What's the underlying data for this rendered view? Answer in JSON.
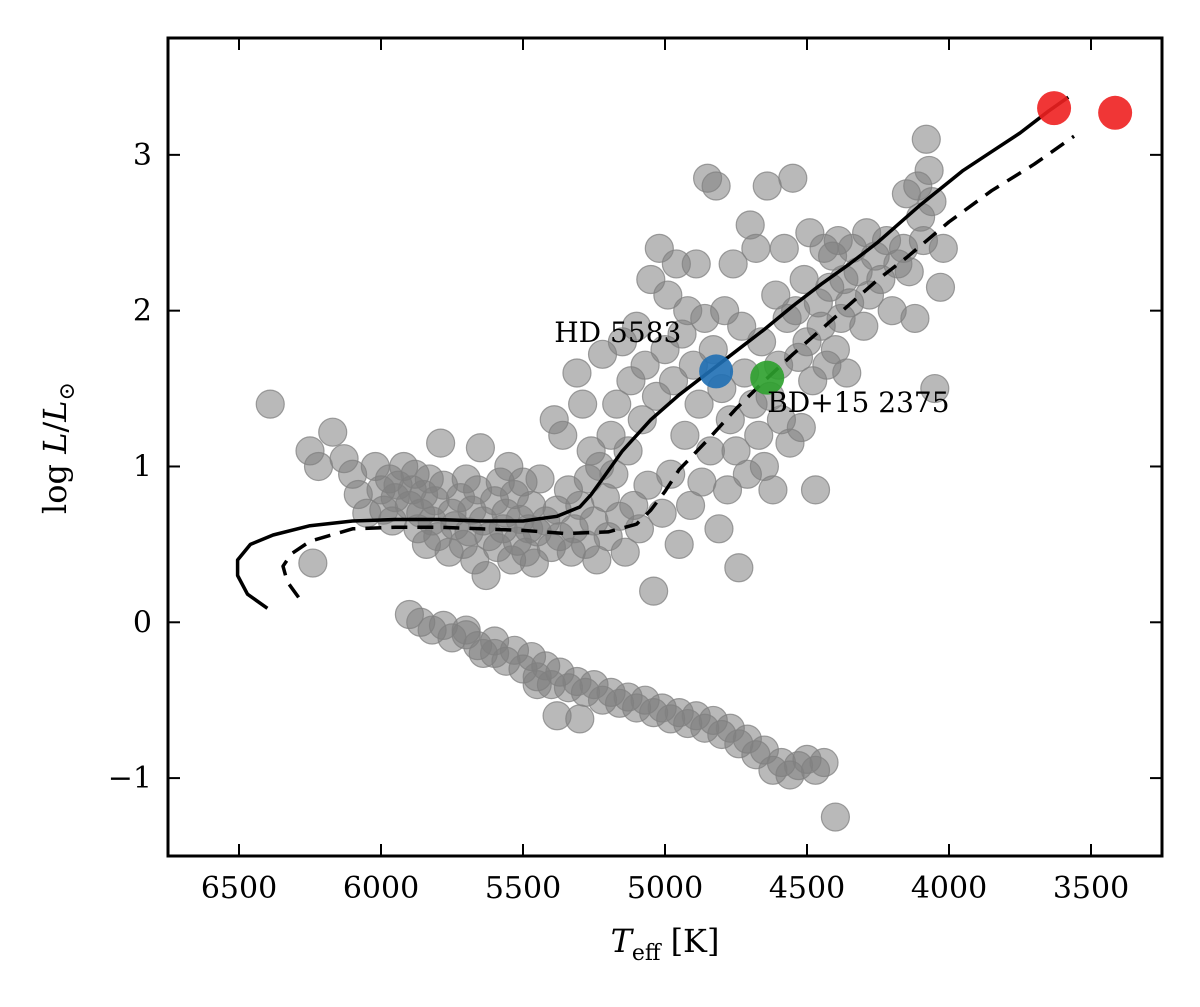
{
  "chart_data": {
    "type": "scatter",
    "xlabel": "T_eff [K]",
    "ylabel": "log L/L_⊙",
    "xlabel_parts": {
      "symbol": "T",
      "sub": "eff",
      "unit": "[K]"
    },
    "ylabel_parts": {
      "log": "log",
      "num": "L",
      "slash": "/",
      "den": "L",
      "sub": "⊙"
    },
    "x_ticks": [
      6500,
      6000,
      5500,
      5000,
      4500,
      4000,
      3500
    ],
    "x_tick_labels": [
      "6500",
      "6000",
      "5500",
      "5000",
      "4500",
      "4000",
      "3500"
    ],
    "y_ticks": [
      -1,
      0,
      1,
      2,
      3
    ],
    "y_tick_labels": [
      "−1",
      "0",
      "1",
      "2",
      "3"
    ],
    "xlim": [
      6750,
      3250
    ],
    "ylim": [
      -1.5,
      3.75
    ],
    "x_inverted": true,
    "grid": false,
    "colors": {
      "background_points": "#808080",
      "HD 5583": "#1f6fb4",
      "BD+15 2375": "#2ca02c",
      "highlight": "#ee2020",
      "track": "#000000"
    },
    "annotations": [
      {
        "text": "HD 5583",
        "x": 5390,
        "y": 1.8
      },
      {
        "text": "BD+15 2375",
        "x": 4640,
        "y": 1.35
      }
    ],
    "highlight_points": [
      {
        "name": "HD 5583",
        "x": 4820,
        "y": 1.61,
        "color": "#1f6fb4"
      },
      {
        "name": "BD+15 2375",
        "x": 4640,
        "y": 1.57,
        "color": "#2ca02c"
      },
      {
        "x": 3630,
        "y": 3.3,
        "color": "#ee2020"
      },
      {
        "x": 3415,
        "y": 3.27,
        "color": "#ee2020"
      }
    ],
    "tracks": [
      {
        "style": "solid",
        "x": [
          6400,
          6470,
          6505,
          6505,
          6460,
          6380,
          6250,
          6100,
          5950,
          5800,
          5650,
          5500,
          5380,
          5300,
          5260,
          5220,
          5150,
          5050,
          4950,
          4850,
          4750,
          4650,
          4550,
          4450,
          4350,
          4250,
          4100,
          3950,
          3850,
          3750,
          3650,
          3580
        ],
        "y": [
          0.09,
          0.18,
          0.3,
          0.4,
          0.5,
          0.56,
          0.62,
          0.65,
          0.66,
          0.66,
          0.65,
          0.65,
          0.68,
          0.74,
          0.82,
          0.92,
          1.1,
          1.3,
          1.46,
          1.6,
          1.74,
          1.88,
          2.03,
          2.17,
          2.3,
          2.44,
          2.68,
          2.9,
          3.02,
          3.14,
          3.28,
          3.37
        ]
      },
      {
        "style": "dashed",
        "x": [
          6290,
          6330,
          6345,
          6315,
          6250,
          6100,
          5950,
          5800,
          5650,
          5500,
          5350,
          5200,
          5100,
          5050,
          5000,
          4950,
          4850,
          4750,
          4650,
          4550,
          4450,
          4350,
          4250,
          4150,
          4000,
          3850,
          3700,
          3560
        ],
        "y": [
          0.16,
          0.26,
          0.36,
          0.44,
          0.52,
          0.6,
          0.61,
          0.61,
          0.6,
          0.59,
          0.57,
          0.58,
          0.63,
          0.72,
          0.84,
          0.98,
          1.17,
          1.37,
          1.55,
          1.72,
          1.88,
          2.04,
          2.2,
          2.34,
          2.57,
          2.77,
          2.94,
          3.12
        ]
      }
    ],
    "background_points": [
      [
        6390,
        1.4
      ],
      [
        6250,
        1.1
      ],
      [
        6240,
        0.38
      ],
      [
        6220,
        1.0
      ],
      [
        6170,
        1.22
      ],
      [
        6130,
        1.05
      ],
      [
        6100,
        0.95
      ],
      [
        6080,
        0.82
      ],
      [
        6050,
        0.7
      ],
      [
        6020,
        1.0
      ],
      [
        6000,
        0.85
      ],
      [
        5990,
        0.72
      ],
      [
        5970,
        0.92
      ],
      [
        5960,
        0.65
      ],
      [
        5950,
        0.8
      ],
      [
        5940,
        0.88
      ],
      [
        5920,
        1.0
      ],
      [
        5900,
        0.75
      ],
      [
        5890,
        0.85
      ],
      [
        5880,
        0.95
      ],
      [
        5870,
        0.6
      ],
      [
        5860,
        0.7
      ],
      [
        5850,
        0.82
      ],
      [
        5840,
        0.5
      ],
      [
        5830,
        0.92
      ],
      [
        5820,
        0.65
      ],
      [
        5810,
        0.78
      ],
      [
        5800,
        0.55
      ],
      [
        5790,
        1.15
      ],
      [
        5780,
        0.88
      ],
      [
        5760,
        0.45
      ],
      [
        5750,
        0.7
      ],
      [
        5740,
        0.62
      ],
      [
        5720,
        0.8
      ],
      [
        5710,
        0.5
      ],
      [
        5700,
        0.92
      ],
      [
        5690,
        0.58
      ],
      [
        5680,
        0.72
      ],
      [
        5670,
        0.4
      ],
      [
        5660,
        0.85
      ],
      [
        5650,
        1.12
      ],
      [
        5640,
        0.65
      ],
      [
        5630,
        0.3
      ],
      [
        5620,
        0.55
      ],
      [
        5600,
        0.78
      ],
      [
        5590,
        0.48
      ],
      [
        5580,
        0.9
      ],
      [
        5570,
        0.6
      ],
      [
        5560,
        0.7
      ],
      [
        5550,
        1.0
      ],
      [
        5540,
        0.4
      ],
      [
        5530,
        0.82
      ],
      [
        5520,
        0.52
      ],
      [
        5510,
        0.66
      ],
      [
        5500,
        0.9
      ],
      [
        5490,
        0.45
      ],
      [
        5480,
        0.6
      ],
      [
        5470,
        0.75
      ],
      [
        5460,
        0.38
      ],
      [
        5450,
        0.58
      ],
      [
        5440,
        0.92
      ],
      [
        5420,
        0.65
      ],
      [
        5400,
        0.48
      ],
      [
        5390,
        1.3
      ],
      [
        5380,
        0.72
      ],
      [
        5370,
        0.55
      ],
      [
        5360,
        1.2
      ],
      [
        5340,
        0.85
      ],
      [
        5330,
        0.45
      ],
      [
        5320,
        0.6
      ],
      [
        5310,
        1.6
      ],
      [
        5300,
        0.75
      ],
      [
        5290,
        1.4
      ],
      [
        5280,
        0.5
      ],
      [
        5270,
        0.92
      ],
      [
        5260,
        1.1
      ],
      [
        5250,
        0.65
      ],
      [
        5240,
        0.4
      ],
      [
        5230,
        1.0
      ],
      [
        5220,
        1.72
      ],
      [
        5210,
        0.8
      ],
      [
        5200,
        0.55
      ],
      [
        5190,
        1.2
      ],
      [
        5180,
        0.95
      ],
      [
        5170,
        1.4
      ],
      [
        5160,
        0.68
      ],
      [
        5150,
        1.8
      ],
      [
        5140,
        0.45
      ],
      [
        5130,
        1.1
      ],
      [
        5120,
        1.55
      ],
      [
        5110,
        0.75
      ],
      [
        5100,
        1.9
      ],
      [
        5090,
        0.6
      ],
      [
        5080,
        1.3
      ],
      [
        5070,
        1.65
      ],
      [
        5060,
        0.88
      ],
      [
        5050,
        2.2
      ],
      [
        5040,
        0.2
      ],
      [
        5030,
        1.45
      ],
      [
        5020,
        2.4
      ],
      [
        5010,
        0.7
      ],
      [
        5000,
        1.75
      ],
      [
        4990,
        2.1
      ],
      [
        4980,
        0.95
      ],
      [
        4970,
        1.55
      ],
      [
        4960,
        2.3
      ],
      [
        4950,
        0.5
      ],
      [
        4940,
        1.85
      ],
      [
        4930,
        1.2
      ],
      [
        4920,
        2.0
      ],
      [
        4910,
        0.75
      ],
      [
        4900,
        1.65
      ],
      [
        4890,
        2.3
      ],
      [
        4880,
        1.4
      ],
      [
        4870,
        0.9
      ],
      [
        4860,
        1.95
      ],
      [
        4850,
        2.85
      ],
      [
        4840,
        1.1
      ],
      [
        4830,
        1.75
      ],
      [
        4820,
        2.8
      ],
      [
        4810,
        0.6
      ],
      [
        4800,
        1.5
      ],
      [
        4790,
        2.0
      ],
      [
        4780,
        0.85
      ],
      [
        4770,
        1.3
      ],
      [
        4760,
        2.3
      ],
      [
        4750,
        1.1
      ],
      [
        4740,
        0.35
      ],
      [
        4730,
        1.9
      ],
      [
        4720,
        1.6
      ],
      [
        4710,
        0.95
      ],
      [
        4700,
        2.55
      ],
      [
        4690,
        1.4
      ],
      [
        4680,
        2.4
      ],
      [
        4670,
        1.2
      ],
      [
        4660,
        1.8
      ],
      [
        4650,
        1.0
      ],
      [
        4640,
        2.8
      ],
      [
        4630,
        1.45
      ],
      [
        4620,
        0.85
      ],
      [
        4610,
        2.1
      ],
      [
        4600,
        1.65
      ],
      [
        4590,
        1.3
      ],
      [
        4580,
        2.4
      ],
      [
        4570,
        1.95
      ],
      [
        4560,
        1.15
      ],
      [
        4550,
        2.85
      ],
      [
        4540,
        2.0
      ],
      [
        4530,
        1.7
      ],
      [
        4520,
        1.25
      ],
      [
        4510,
        2.2
      ],
      [
        4500,
        1.8
      ],
      [
        4490,
        2.5
      ],
      [
        4480,
        1.55
      ],
      [
        4470,
        0.85
      ],
      [
        4460,
        2.05
      ],
      [
        4450,
        1.9
      ],
      [
        4440,
        2.4
      ],
      [
        4430,
        1.65
      ],
      [
        4420,
        2.15
      ],
      [
        4410,
        2.35
      ],
      [
        4400,
        1.75
      ],
      [
        4390,
        2.45
      ],
      [
        4380,
        1.95
      ],
      [
        4370,
        2.2
      ],
      [
        4360,
        1.6
      ],
      [
        4350,
        2.05
      ],
      [
        4340,
        2.4
      ],
      [
        4320,
        2.25
      ],
      [
        4300,
        1.9
      ],
      [
        4290,
        2.5
      ],
      [
        4280,
        2.1
      ],
      [
        4260,
        2.35
      ],
      [
        4240,
        2.2
      ],
      [
        4220,
        2.45
      ],
      [
        4200,
        2.0
      ],
      [
        4180,
        2.3
      ],
      [
        4160,
        2.4
      ],
      [
        4150,
        2.75
      ],
      [
        4140,
        2.25
      ],
      [
        4120,
        1.95
      ],
      [
        4110,
        2.8
      ],
      [
        4100,
        2.6
      ],
      [
        4090,
        2.45
      ],
      [
        4080,
        3.1
      ],
      [
        4070,
        2.9
      ],
      [
        4060,
        2.7
      ],
      [
        4050,
        1.5
      ],
      [
        4030,
        2.15
      ],
      [
        4020,
        2.4
      ],
      [
        5900,
        0.05
      ],
      [
        5860,
        0.0
      ],
      [
        5820,
        -0.05
      ],
      [
        5780,
        -0.02
      ],
      [
        5750,
        -0.1
      ],
      [
        5700,
        -0.08
      ],
      [
        5660,
        -0.15
      ],
      [
        5640,
        -0.2
      ],
      [
        5600,
        -0.12
      ],
      [
        5560,
        -0.25
      ],
      [
        5530,
        -0.18
      ],
      [
        5500,
        -0.3
      ],
      [
        5470,
        -0.22
      ],
      [
        5450,
        -0.35
      ],
      [
        5420,
        -0.28
      ],
      [
        5400,
        -0.4
      ],
      [
        5370,
        -0.32
      ],
      [
        5340,
        -0.42
      ],
      [
        5310,
        -0.38
      ],
      [
        5280,
        -0.45
      ],
      [
        5250,
        -0.4
      ],
      [
        5220,
        -0.5
      ],
      [
        5190,
        -0.45
      ],
      [
        5160,
        -0.52
      ],
      [
        5130,
        -0.48
      ],
      [
        5100,
        -0.55
      ],
      [
        5070,
        -0.5
      ],
      [
        5040,
        -0.58
      ],
      [
        5010,
        -0.55
      ],
      [
        4980,
        -0.62
      ],
      [
        4950,
        -0.58
      ],
      [
        4920,
        -0.65
      ],
      [
        4890,
        -0.6
      ],
      [
        4860,
        -0.68
      ],
      [
        4830,
        -0.63
      ],
      [
        4800,
        -0.72
      ],
      [
        4770,
        -0.68
      ],
      [
        4740,
        -0.78
      ],
      [
        4710,
        -0.75
      ],
      [
        4680,
        -0.85
      ],
      [
        4650,
        -0.82
      ],
      [
        4620,
        -0.95
      ],
      [
        4590,
        -0.9
      ],
      [
        4560,
        -0.98
      ],
      [
        4530,
        -0.92
      ],
      [
        4500,
        -0.88
      ],
      [
        4470,
        -0.95
      ],
      [
        4440,
        -0.9
      ],
      [
        4400,
        -1.25
      ],
      [
        5380,
        -0.6
      ],
      [
        5300,
        -0.62
      ],
      [
        5450,
        -0.4
      ],
      [
        5600,
        -0.2
      ],
      [
        5700,
        -0.05
      ]
    ]
  }
}
